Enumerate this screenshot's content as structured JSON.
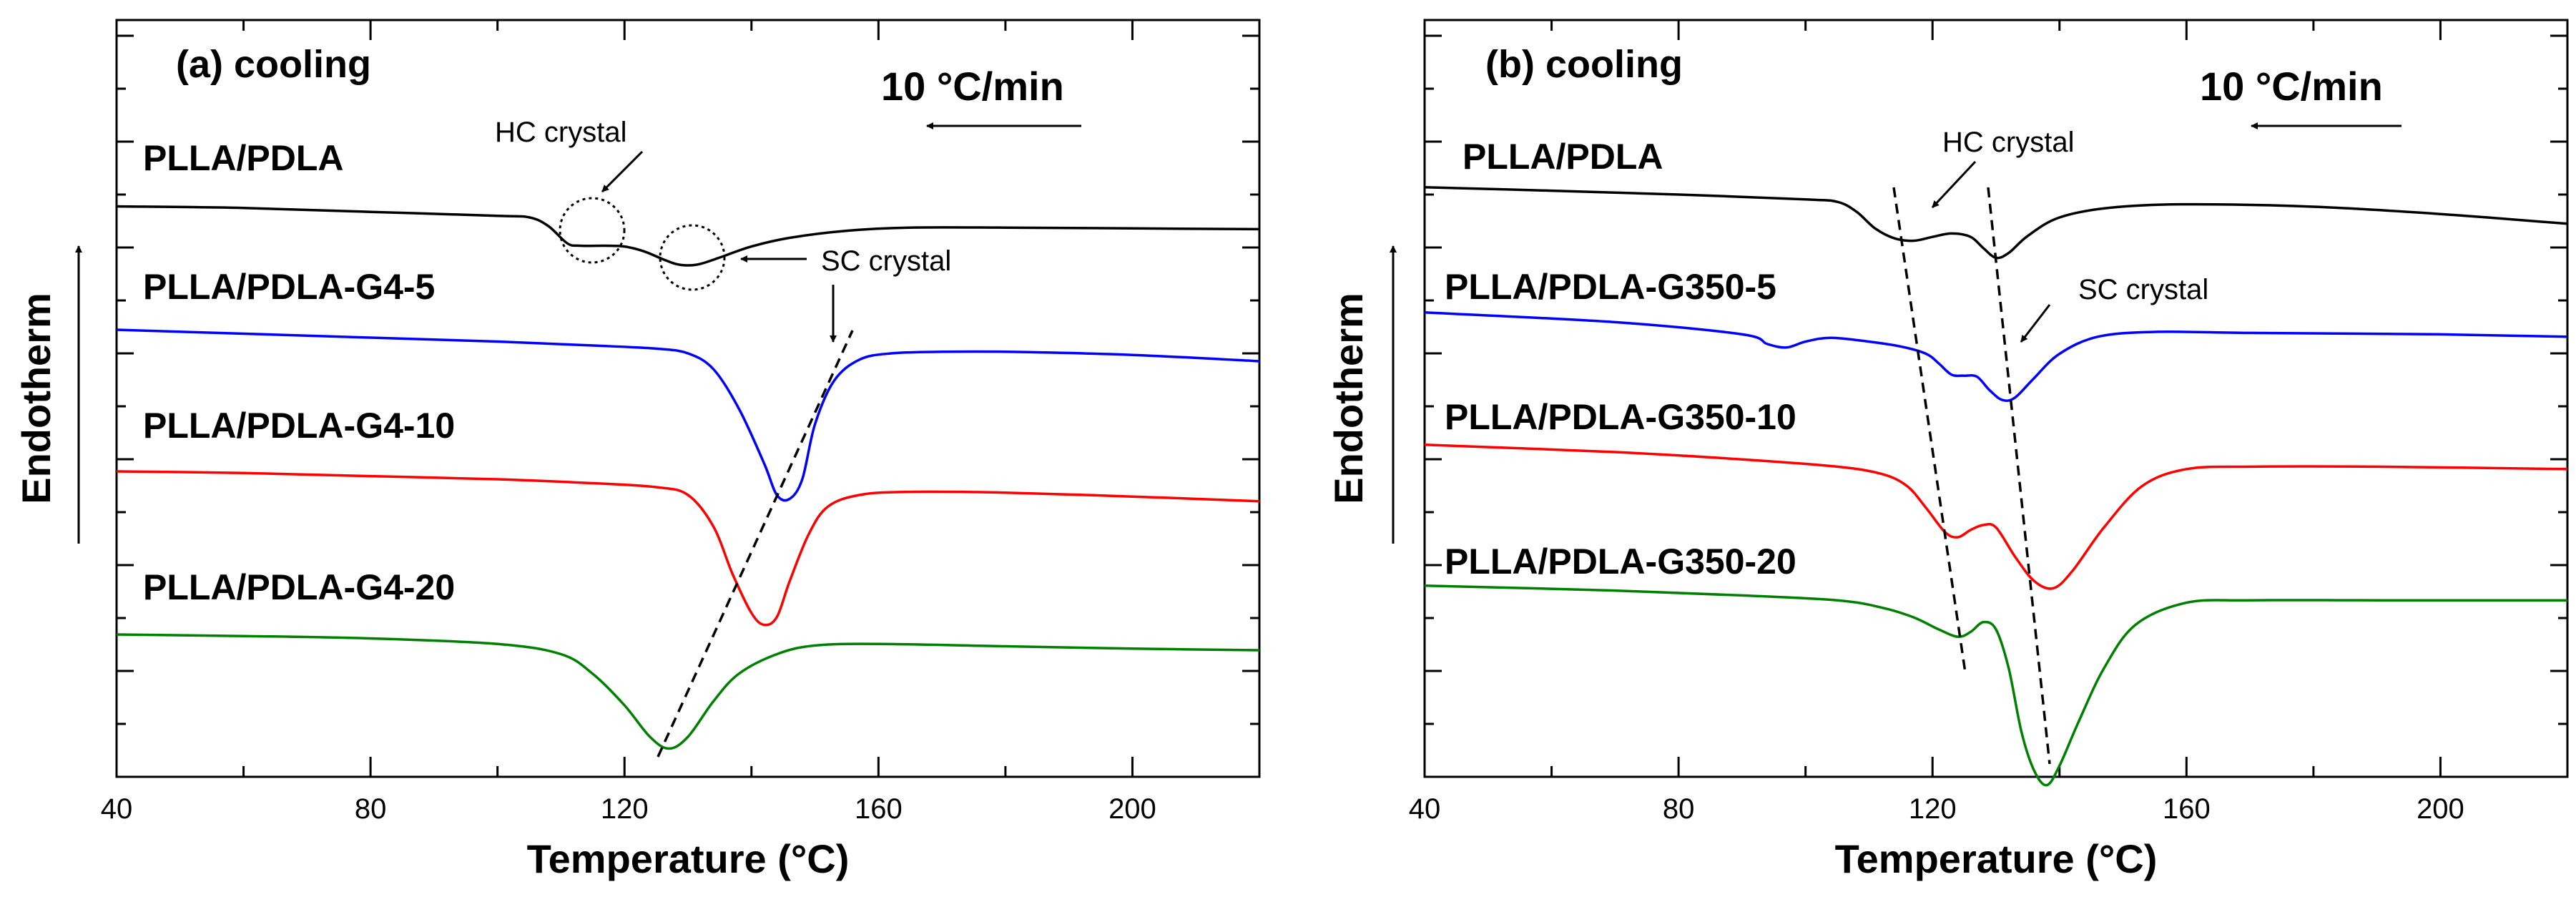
{
  "chart_data": [
    {
      "type": "line",
      "panel_label": "(a) cooling",
      "rate_label": "10 °C/min",
      "xlabel": "Temperature (°C)",
      "ylabel": "Endotherm",
      "xlim": [
        40,
        220
      ],
      "xticks": [
        40,
        80,
        120,
        160,
        200
      ],
      "y_units": "arbitrary (stacked, offset traces)",
      "annotations": {
        "hc": "HC crystal",
        "sc": "SC crystal"
      },
      "series": [
        {
          "name": "PLLA/PDLA",
          "color": "#000000",
          "points": [
            [
              40,
              0.15
            ],
            [
              60,
              0.17
            ],
            [
              80,
              0.22
            ],
            [
              100,
              0.27
            ],
            [
              105,
              0.29
            ],
            [
              108,
              0.4
            ],
            [
              111,
              0.62
            ],
            [
              113,
              0.65
            ],
            [
              117,
              0.65
            ],
            [
              120,
              0.66
            ],
            [
              123,
              0.72
            ],
            [
              126,
              0.82
            ],
            [
              128,
              0.88
            ],
            [
              130,
              0.9
            ],
            [
              132,
              0.88
            ],
            [
              135,
              0.8
            ],
            [
              140,
              0.66
            ],
            [
              146,
              0.55
            ],
            [
              155,
              0.46
            ],
            [
              165,
              0.42
            ],
            [
              180,
              0.42
            ],
            [
              200,
              0.43
            ],
            [
              220,
              0.44
            ]
          ]
        },
        {
          "name": "PLLA/PDLA-G4-5",
          "color": "#0000ff",
          "points": [
            [
              40,
              0.1
            ],
            [
              60,
              0.15
            ],
            [
              80,
              0.2
            ],
            [
              100,
              0.25
            ],
            [
              115,
              0.3
            ],
            [
              125,
              0.34
            ],
            [
              130,
              0.4
            ],
            [
              134,
              0.6
            ],
            [
              138,
              1.1
            ],
            [
              142,
              1.8
            ],
            [
              144,
              2.2
            ],
            [
              146,
              2.25
            ],
            [
              148,
              2.0
            ],
            [
              150,
              1.3
            ],
            [
              153,
              0.75
            ],
            [
              157,
              0.48
            ],
            [
              162,
              0.4
            ],
            [
              170,
              0.38
            ],
            [
              180,
              0.38
            ],
            [
              200,
              0.42
            ],
            [
              220,
              0.5
            ]
          ]
        },
        {
          "name": "PLLA/PDLA-G4-10",
          "color": "#ff0000",
          "points": [
            [
              40,
              0.1
            ],
            [
              60,
              0.12
            ],
            [
              80,
              0.16
            ],
            [
              100,
              0.2
            ],
            [
              115,
              0.25
            ],
            [
              125,
              0.3
            ],
            [
              130,
              0.4
            ],
            [
              134,
              0.8
            ],
            [
              137,
              1.4
            ],
            [
              140,
              1.9
            ],
            [
              142,
              2.05
            ],
            [
              144,
              1.95
            ],
            [
              146,
              1.5
            ],
            [
              149,
              0.9
            ],
            [
              152,
              0.55
            ],
            [
              157,
              0.4
            ],
            [
              165,
              0.36
            ],
            [
              180,
              0.37
            ],
            [
              200,
              0.42
            ],
            [
              220,
              0.48
            ]
          ]
        },
        {
          "name": "PLLA/PDLA-G4-20",
          "color": "#008000",
          "points": [
            [
              40,
              0.1
            ],
            [
              60,
              0.12
            ],
            [
              80,
              0.15
            ],
            [
              100,
              0.22
            ],
            [
              110,
              0.35
            ],
            [
              115,
              0.6
            ],
            [
              120,
              1.0
            ],
            [
              124,
              1.4
            ],
            [
              127,
              1.55
            ],
            [
              130,
              1.4
            ],
            [
              134,
              0.95
            ],
            [
              138,
              0.6
            ],
            [
              144,
              0.35
            ],
            [
              150,
              0.24
            ],
            [
              160,
              0.22
            ],
            [
              180,
              0.25
            ],
            [
              200,
              0.28
            ],
            [
              220,
              0.3
            ]
          ]
        }
      ]
    },
    {
      "type": "line",
      "panel_label": "(b) cooling",
      "rate_label": "10 °C/min",
      "xlabel": "Temperature (°C)",
      "ylabel": "Endotherm",
      "xlim": [
        40,
        220
      ],
      "xticks": [
        40,
        80,
        120,
        160,
        200
      ],
      "y_units": "arbitrary (stacked, offset traces)",
      "annotations": {
        "hc": "HC crystal",
        "sc": "SC crystal"
      },
      "series": [
        {
          "name": "PLLA/PDLA",
          "color": "#000000",
          "points": [
            [
              40,
              0.1
            ],
            [
              60,
              0.17
            ],
            [
              80,
              0.25
            ],
            [
              100,
              0.35
            ],
            [
              105,
              0.4
            ],
            [
              108,
              0.6
            ],
            [
              111,
              0.95
            ],
            [
              114,
              1.15
            ],
            [
              117,
              1.2
            ],
            [
              120,
              1.12
            ],
            [
              123,
              1.05
            ],
            [
              126,
              1.12
            ],
            [
              128,
              1.35
            ],
            [
              130,
              1.55
            ],
            [
              132,
              1.45
            ],
            [
              135,
              1.1
            ],
            [
              140,
              0.72
            ],
            [
              148,
              0.52
            ],
            [
              160,
              0.45
            ],
            [
              180,
              0.5
            ],
            [
              200,
              0.65
            ],
            [
              220,
              0.85
            ]
          ]
        },
        {
          "name": "PLLA/PDLA-G350-5",
          "color": "#0000ff",
          "points": [
            [
              40,
              0.1
            ],
            [
              70,
              0.3
            ],
            [
              90,
              0.55
            ],
            [
              94,
              0.75
            ],
            [
              97,
              0.82
            ],
            [
              100,
              0.7
            ],
            [
              104,
              0.62
            ],
            [
              110,
              0.7
            ],
            [
              115,
              0.8
            ],
            [
              119,
              0.95
            ],
            [
              121,
              1.15
            ],
            [
              123,
              1.38
            ],
            [
              125,
              1.4
            ],
            [
              127,
              1.42
            ],
            [
              129,
              1.7
            ],
            [
              131,
              1.9
            ],
            [
              133,
              1.85
            ],
            [
              136,
              1.45
            ],
            [
              140,
              0.95
            ],
            [
              146,
              0.6
            ],
            [
              155,
              0.5
            ],
            [
              170,
              0.52
            ],
            [
              200,
              0.55
            ],
            [
              220,
              0.6
            ]
          ]
        },
        {
          "name": "PLLA/PDLA-G350-10",
          "color": "#ff0000",
          "points": [
            [
              40,
              0.1
            ],
            [
              70,
              0.25
            ],
            [
              90,
              0.4
            ],
            [
              105,
              0.55
            ],
            [
              112,
              0.7
            ],
            [
              116,
              0.95
            ],
            [
              119,
              1.4
            ],
            [
              122,
              1.9
            ],
            [
              124,
              2.0
            ],
            [
              126,
              1.85
            ],
            [
              128,
              1.75
            ],
            [
              130,
              1.8
            ],
            [
              133,
              2.4
            ],
            [
              136,
              2.9
            ],
            [
              139,
              3.05
            ],
            [
              142,
              2.7
            ],
            [
              147,
              1.8
            ],
            [
              153,
              0.95
            ],
            [
              160,
              0.6
            ],
            [
              170,
              0.55
            ],
            [
              190,
              0.55
            ],
            [
              220,
              0.6
            ]
          ]
        },
        {
          "name": "PLLA/PDLA-G350-20",
          "color": "#008000",
          "points": [
            [
              40,
              0.1
            ],
            [
              70,
              0.2
            ],
            [
              90,
              0.3
            ],
            [
              105,
              0.4
            ],
            [
              112,
              0.55
            ],
            [
              117,
              0.75
            ],
            [
              121,
              1.0
            ],
            [
              124,
              1.15
            ],
            [
              126,
              1.05
            ],
            [
              128,
              0.85
            ],
            [
              130,
              1.0
            ],
            [
              132,
              1.8
            ],
            [
              134,
              3.1
            ],
            [
              136,
              3.9
            ],
            [
              138,
              4.2
            ],
            [
              140,
              3.8
            ],
            [
              143,
              2.9
            ],
            [
              147,
              1.8
            ],
            [
              152,
              0.9
            ],
            [
              160,
              0.45
            ],
            [
              170,
              0.4
            ],
            [
              190,
              0.4
            ],
            [
              220,
              0.4
            ]
          ]
        }
      ]
    }
  ]
}
